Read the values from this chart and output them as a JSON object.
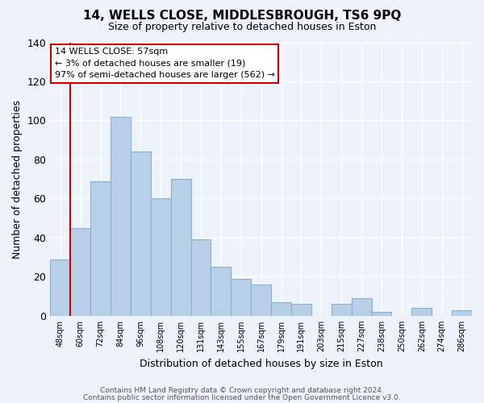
{
  "title": "14, WELLS CLOSE, MIDDLESBROUGH, TS6 9PQ",
  "subtitle": "Size of property relative to detached houses in Eston",
  "bar_labels": [
    "48sqm",
    "60sqm",
    "72sqm",
    "84sqm",
    "96sqm",
    "108sqm",
    "120sqm",
    "131sqm",
    "143sqm",
    "155sqm",
    "167sqm",
    "179sqm",
    "191sqm",
    "203sqm",
    "215sqm",
    "227sqm",
    "238sqm",
    "250sqm",
    "262sqm",
    "274sqm",
    "286sqm"
  ],
  "bar_values": [
    29,
    45,
    69,
    102,
    84,
    60,
    70,
    39,
    25,
    19,
    16,
    7,
    6,
    0,
    6,
    9,
    2,
    0,
    4,
    0,
    3
  ],
  "bar_color": "#b8cfe8",
  "bar_edge_color": "#8ab0d0",
  "highlight_line_color": "#cc0000",
  "ylabel": "Number of detached properties",
  "xlabel": "Distribution of detached houses by size in Eston",
  "ylim": [
    0,
    140
  ],
  "yticks": [
    0,
    20,
    40,
    60,
    80,
    100,
    120,
    140
  ],
  "annotation_title": "14 WELLS CLOSE: 57sqm",
  "annotation_line1": "← 3% of detached houses are smaller (19)",
  "annotation_line2": "97% of semi-detached houses are larger (562) →",
  "annotation_box_color": "#ffffff",
  "annotation_box_edge": "#cc0000",
  "footer1": "Contains HM Land Registry data © Crown copyright and database right 2024.",
  "footer2": "Contains public sector information licensed under the Open Government Licence v3.0.",
  "bg_color": "#eef2fa",
  "grid_color": "#ffffff"
}
